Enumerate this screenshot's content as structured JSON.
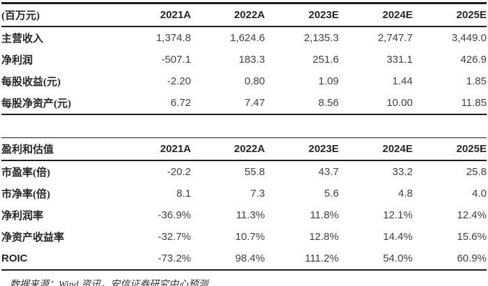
{
  "page": {
    "background": "#ffffff",
    "text_color": "#3f3f3f",
    "heading_color": "#262626",
    "rule_color": "#1c1c1c"
  },
  "table1": {
    "unit_label": "(百万元)",
    "columns": [
      "2021A",
      "2022A",
      "2023E",
      "2024E",
      "2025E"
    ],
    "rows": [
      {
        "label": "主营收入",
        "values": [
          "1,374.8",
          "1,624.6",
          "2,135.3",
          "2,747.7",
          "3,449.0"
        ]
      },
      {
        "label": "净利润",
        "values": [
          "-507.1",
          "183.3",
          "251.6",
          "331.1",
          "426.9"
        ]
      },
      {
        "label": "每股收益(元)",
        "values": [
          "-2.20",
          "0.80",
          "1.09",
          "1.44",
          "1.85"
        ]
      },
      {
        "label": "每股净资产(元)",
        "values": [
          "6.72",
          "7.47",
          "8.56",
          "10.00",
          "11.85"
        ]
      }
    ]
  },
  "table2": {
    "title": "盈利和估值",
    "columns": [
      "2021A",
      "2022A",
      "2023E",
      "2024E",
      "2025E"
    ],
    "rows": [
      {
        "label": "市盈率(倍)",
        "values": [
          "-20.2",
          "55.8",
          "43.7",
          "33.2",
          "25.8"
        ]
      },
      {
        "label": "市净率(倍)",
        "values": [
          "8.1",
          "7.3",
          "5.6",
          "4.8",
          "4.0"
        ]
      },
      {
        "label": "净利润率",
        "values": [
          "-36.9%",
          "11.3%",
          "11.8%",
          "12.1%",
          "12.4%"
        ]
      },
      {
        "label": "净资产收益率",
        "values": [
          "-32.7%",
          "10.7%",
          "12.8%",
          "14.4%",
          "15.6%"
        ]
      },
      {
        "label": "ROIC",
        "values": [
          "-73.2%",
          "98.4%",
          "111.2%",
          "54.0%",
          "60.9%"
        ]
      }
    ]
  },
  "footer": {
    "source_note": "数据来源：Wind 资讯，安信证券研究中心预测"
  }
}
